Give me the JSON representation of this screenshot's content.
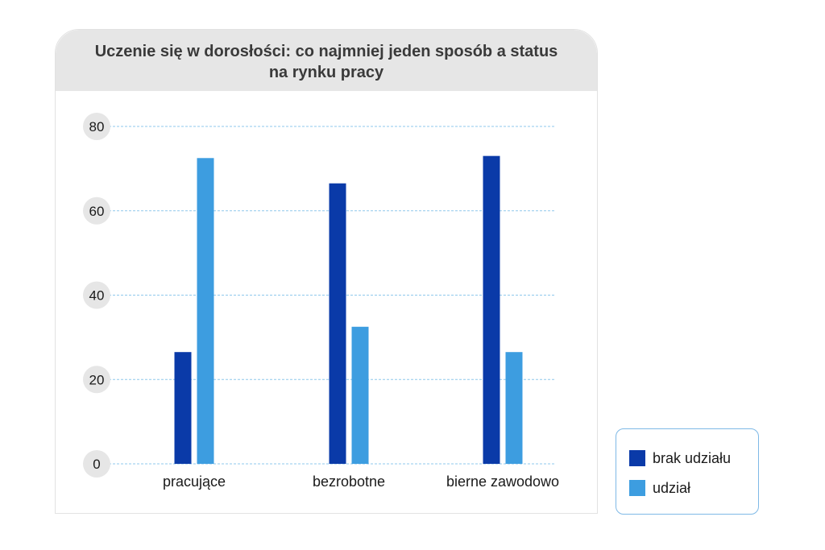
{
  "chart_data": {
    "type": "bar",
    "title": "Uczenie się w dorosłości: co najmniej jeden sposób a status na rynku pracy",
    "categories": [
      "pracujące",
      "bezrobotne",
      "bierne zawodowo"
    ],
    "series": [
      {
        "name": "brak udziału",
        "values": [
          26.5,
          66.5,
          73
        ],
        "color": "#0a3aa8"
      },
      {
        "name": "udział",
        "values": [
          72.5,
          32.5,
          26.5
        ],
        "color": "#3d9de0"
      }
    ],
    "yticks": [
      0,
      20,
      40,
      60,
      80
    ],
    "ylim": [
      0,
      80
    ],
    "grid": true,
    "grid_color": "#8fc8ec",
    "legend_position": "bottom-right"
  }
}
